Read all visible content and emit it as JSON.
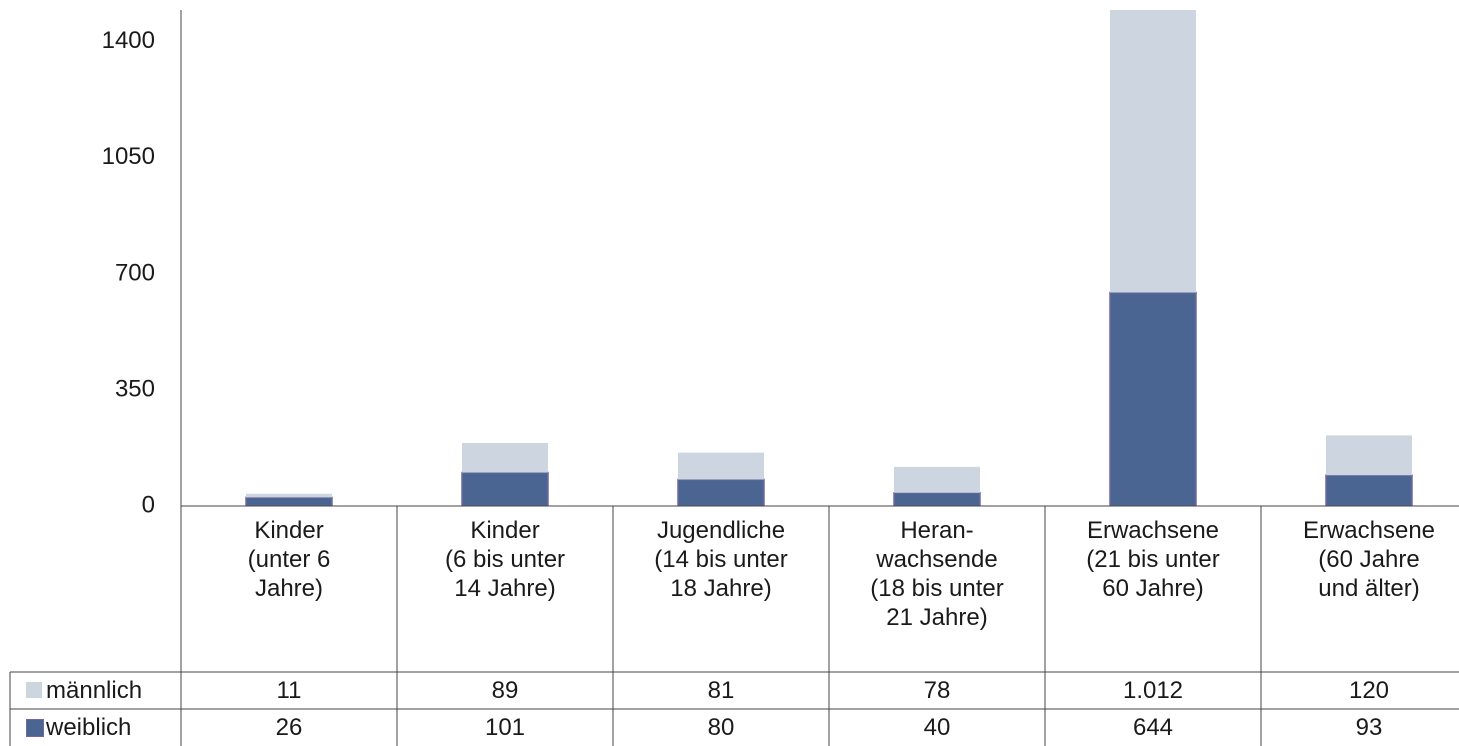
{
  "chart_data": {
    "type": "stacked_bar",
    "categories": [
      "Kinder\n(unter 6\nJahre)",
      "Kinder\n(6 bis unter\n14 Jahre)",
      "Jugendliche\n(14 bis unter\n18 Jahre)",
      "Heran-\nwachsende\n(18 bis unter\n21 Jahre)",
      "Erwachsene\n(21 bis unter\n60 Jahre)",
      "Erwachsene\n(60 Jahre\nund älter)"
    ],
    "series": [
      {
        "name": "weiblich",
        "color": "#4a6591",
        "values": [
          26,
          101,
          80,
          40,
          644,
          93
        ]
      },
      {
        "name": "männlich",
        "color": "#cdd5e0",
        "values": [
          11,
          89,
          81,
          78,
          1012,
          120
        ],
        "value_labels": [
          "11",
          "89",
          "81",
          "78",
          "1.012",
          "120"
        ]
      }
    ],
    "table_order": [
      1,
      0
    ],
    "ylim": [
      0,
      1496
    ],
    "yticks": [
      0,
      350,
      700,
      1050,
      1400
    ],
    "grid": false
  }
}
